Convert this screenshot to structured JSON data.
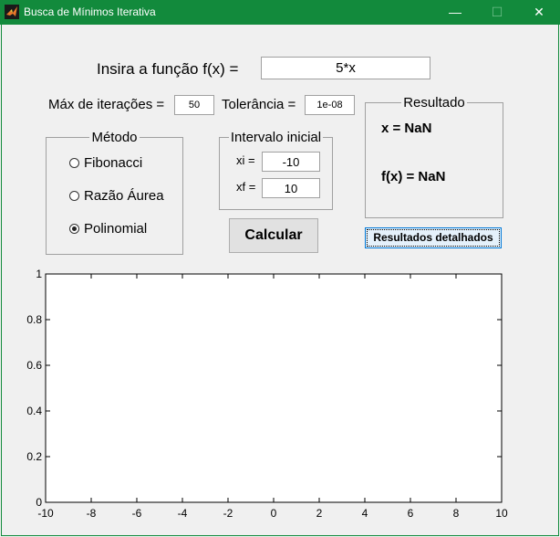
{
  "window": {
    "title": "Busca de Mínimos Iterativa",
    "controls": {
      "minimize": "—",
      "maximize": "☐",
      "close": "✕"
    },
    "titlebar_color": "#128a3c"
  },
  "function_input": {
    "label": "Insira a função f(x) =",
    "value": "5*x"
  },
  "iterations": {
    "label": "Máx de iterações =",
    "value": "50"
  },
  "tolerance": {
    "label": "Tolerância =",
    "value": "1e-08"
  },
  "method": {
    "title": "Método",
    "options": [
      {
        "label": "Fibonacci",
        "checked": false
      },
      {
        "label": "Razão Áurea",
        "checked": false
      },
      {
        "label": "Polinomial",
        "checked": true
      }
    ]
  },
  "interval": {
    "title": "Intervalo inicial",
    "xi_label": "xi =",
    "xi_value": "-10",
    "xf_label": "xf =",
    "xf_value": "10"
  },
  "calculate_button": "Calcular",
  "result": {
    "title": "Resultado",
    "x_text": "x = NaN",
    "fx_text": "f(x) = NaN"
  },
  "details_button": "Resultados detalhados",
  "chart_data": {
    "type": "line",
    "series": [],
    "xlim": [
      -10,
      10
    ],
    "ylim": [
      0,
      1
    ],
    "x_ticks": [
      -10,
      -8,
      -6,
      -4,
      -2,
      0,
      2,
      4,
      6,
      8,
      10
    ],
    "y_ticks": [
      0,
      0.2,
      0.4,
      0.6,
      0.8,
      1
    ],
    "x_tick_labels": [
      "-10",
      "-8",
      "-6",
      "-4",
      "-2",
      "0",
      "2",
      "4",
      "6",
      "8",
      "10"
    ],
    "y_tick_labels": [
      "0",
      "0.2",
      "0.4",
      "0.6",
      "0.8",
      "1"
    ],
    "grid": false
  }
}
